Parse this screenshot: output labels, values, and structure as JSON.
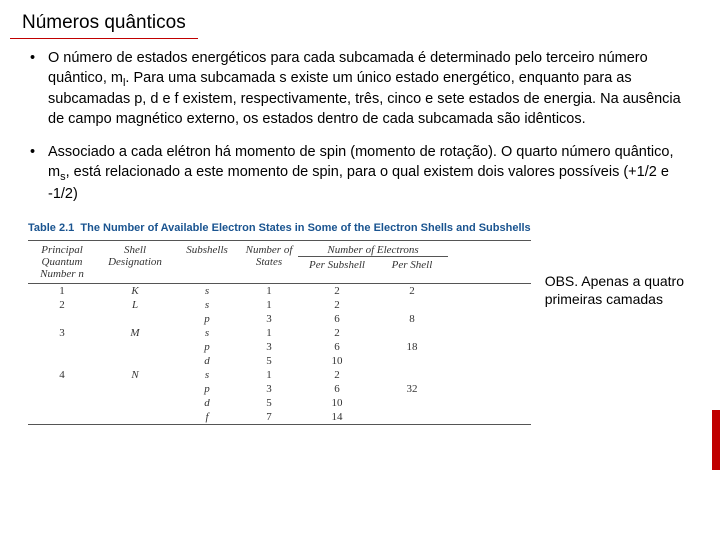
{
  "title": "Números quânticos",
  "bullets": [
    {
      "pre": "O número de estados energéticos para cada subcamada é determinado pelo terceiro número quântico, m",
      "sub": "l",
      "post": ". Para uma subcamada s existe um único estado energético, enquanto para as subcamadas p, d e f existem, respectivamente, três, cinco e sete estados de energia. Na ausência de campo magnético externo, os estados dentro de cada subcamada são idênticos."
    },
    {
      "pre": "Associado a cada elétron há momento de spin (momento de rotação). O quarto número quântico, m",
      "sub": "s",
      "post": ", está relacionado a este momento de spin, para o qual existem dois valores possíveis (+1/2 e -1/2)"
    }
  ],
  "table": {
    "caption_prefix": "Table 2.1",
    "caption": "The Number of Available Electron States in Some of the Electron Shells and Subshells",
    "headers": {
      "c1": "Principal Quantum Number n",
      "c2": "Shell Designation",
      "c3": "Subshells",
      "c4": "Number of States",
      "c5_pre": "Number of Electrons",
      "c5": "Per Subshell",
      "c6": "Per Shell"
    },
    "rows": [
      {
        "n": "1",
        "shell": "K",
        "sub": "s",
        "states": "1",
        "perSub": "2",
        "perShell": "2"
      },
      {
        "n": "2",
        "shell": "L",
        "sub": "s",
        "states": "1",
        "perSub": "2",
        "perShell": ""
      },
      {
        "n": "",
        "shell": "",
        "sub": "p",
        "states": "3",
        "perSub": "6",
        "perShell": "8"
      },
      {
        "n": "3",
        "shell": "M",
        "sub": "s",
        "states": "1",
        "perSub": "2",
        "perShell": ""
      },
      {
        "n": "",
        "shell": "",
        "sub": "p",
        "states": "3",
        "perSub": "6",
        "perShell": "18"
      },
      {
        "n": "",
        "shell": "",
        "sub": "d",
        "states": "5",
        "perSub": "10",
        "perShell": ""
      },
      {
        "n": "4",
        "shell": "N",
        "sub": "s",
        "states": "1",
        "perSub": "2",
        "perShell": ""
      },
      {
        "n": "",
        "shell": "",
        "sub": "p",
        "states": "3",
        "perSub": "6",
        "perShell": "32"
      },
      {
        "n": "",
        "shell": "",
        "sub": "d",
        "states": "5",
        "perSub": "10",
        "perShell": ""
      },
      {
        "n": "",
        "shell": "",
        "sub": "f",
        "states": "7",
        "perSub": "14",
        "perShell": ""
      }
    ]
  },
  "note": "OBS. Apenas a quatro primeiras camadas",
  "colors": {
    "accent": "#c00000",
    "caption": "#1a5490"
  }
}
